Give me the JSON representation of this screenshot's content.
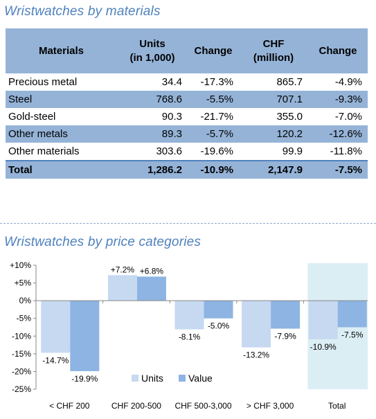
{
  "table_section": {
    "title": "Wristwatches by materials",
    "headers": [
      "Materials",
      "Units\n(in 1,000)",
      "Change",
      "CHF\n(million)",
      "Change"
    ],
    "rows": [
      {
        "name": "Precious metal",
        "units": "34.4",
        "units_change": "-17.3%",
        "chf": "865.7",
        "chf_change": "-4.9%"
      },
      {
        "name": "Steel",
        "units": "768.6",
        "units_change": "-5.5%",
        "chf": "707.1",
        "chf_change": "-9.3%"
      },
      {
        "name": "Gold-steel",
        "units": "90.3",
        "units_change": "-21.7%",
        "chf": "355.0",
        "chf_change": "-7.0%"
      },
      {
        "name": "Other metals",
        "units": "89.3",
        "units_change": "-5.7%",
        "chf": "120.2",
        "chf_change": "-12.6%"
      },
      {
        "name": "Other materials",
        "units": "303.6",
        "units_change": "-19.6%",
        "chf": "99.9",
        "chf_change": "-11.8%"
      }
    ],
    "total": {
      "name": "Total",
      "units": "1,286.2",
      "units_change": "-10.9%",
      "chf": "2,147.9",
      "chf_change": "-7.5%"
    }
  },
  "chart_section": {
    "title": "Wristwatches by price categories"
  },
  "colors": {
    "units": "#c6d9f1",
    "value": "#8db4e2",
    "highlight": "#dbeef4",
    "header": "#95b3d7",
    "title": "#4f81bd"
  },
  "chart_data": {
    "type": "bar",
    "categories": [
      "< CHF 200",
      "CHF 200-500",
      "CHF 500-3,000",
      "> CHF 3,000",
      "Total"
    ],
    "series": [
      {
        "name": "Units",
        "values": [
          -14.7,
          7.2,
          -8.1,
          -13.2,
          -10.9
        ],
        "labels": [
          "-14.7%",
          "+7.2%",
          "-8.1%",
          "-13.2%",
          "-10.9%"
        ]
      },
      {
        "name": "Value",
        "values": [
          -19.9,
          6.8,
          -5.0,
          -7.9,
          -7.5
        ],
        "labels": [
          "-19.9%",
          "+6.8%",
          "-5.0%",
          "-7.9%",
          "-7.5%"
        ]
      }
    ],
    "ylim": [
      -25,
      10
    ],
    "yticks": [
      10,
      5,
      0,
      -5,
      -10,
      -15,
      -20,
      -25
    ],
    "ytick_labels": [
      "+10%",
      "+5%",
      "0%",
      "-5%",
      "-10%",
      "-15%",
      "-20%",
      "-25%"
    ],
    "highlight_category": "Total",
    "legend": "bottom-center",
    "grid": false
  }
}
